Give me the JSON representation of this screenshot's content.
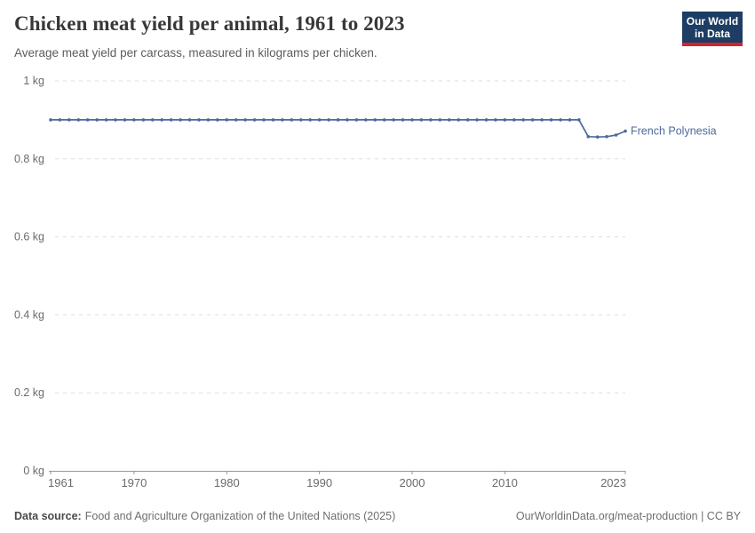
{
  "header": {
    "title": "Chicken meat yield per animal, 1961 to 2023",
    "subtitle": "Average meat yield per carcass, measured in kilograms per chicken.",
    "logo": {
      "line1": "Our World",
      "line2": "in Data",
      "bg_color": "#1d3d63",
      "accent_color": "#d1232a"
    }
  },
  "chart_data": {
    "type": "line",
    "title": "Chicken meat yield per animal, 1961 to 2023",
    "entity": "French Polynesia",
    "unit": "kg",
    "xlabel": "",
    "ylabel": "",
    "xlim": [
      1961,
      2023
    ],
    "ylim": [
      0,
      1
    ],
    "x_ticks": [
      1961,
      1970,
      1980,
      1990,
      2000,
      2010,
      2023
    ],
    "y_ticks": [
      {
        "value": 0,
        "label": "0 kg"
      },
      {
        "value": 0.2,
        "label": "0.2 kg"
      },
      {
        "value": 0.4,
        "label": "0.4 kg"
      },
      {
        "value": 0.6,
        "label": "0.6 kg"
      },
      {
        "value": 0.8,
        "label": "0.8 kg"
      },
      {
        "value": 1,
        "label": "1 kg"
      }
    ],
    "grid": "horizontal-dashed",
    "legend_position": "end-of-line-label",
    "series": [
      {
        "name": "French Polynesia",
        "color": "#4c6a9c",
        "x": [
          1961,
          1962,
          1963,
          1964,
          1965,
          1966,
          1967,
          1968,
          1969,
          1970,
          1971,
          1972,
          1973,
          1974,
          1975,
          1976,
          1977,
          1978,
          1979,
          1980,
          1981,
          1982,
          1983,
          1984,
          1985,
          1986,
          1987,
          1988,
          1989,
          1990,
          1991,
          1992,
          1993,
          1994,
          1995,
          1996,
          1997,
          1998,
          1999,
          2000,
          2001,
          2002,
          2003,
          2004,
          2005,
          2006,
          2007,
          2008,
          2009,
          2010,
          2011,
          2012,
          2013,
          2014,
          2015,
          2016,
          2017,
          2018,
          2019,
          2020,
          2021,
          2022,
          2023
        ],
        "values": [
          0.9,
          0.9,
          0.9,
          0.9,
          0.9,
          0.9,
          0.9,
          0.9,
          0.9,
          0.9,
          0.9,
          0.9,
          0.9,
          0.9,
          0.9,
          0.9,
          0.9,
          0.9,
          0.9,
          0.9,
          0.9,
          0.9,
          0.9,
          0.9,
          0.9,
          0.9,
          0.9,
          0.9,
          0.9,
          0.9,
          0.9,
          0.9,
          0.9,
          0.9,
          0.9,
          0.9,
          0.9,
          0.9,
          0.9,
          0.9,
          0.9,
          0.9,
          0.9,
          0.9,
          0.9,
          0.9,
          0.9,
          0.9,
          0.9,
          0.9,
          0.9,
          0.9,
          0.9,
          0.9,
          0.9,
          0.9,
          0.9,
          0.9,
          0.857,
          0.856,
          0.857,
          0.861,
          0.871
        ]
      }
    ]
  },
  "footer": {
    "source_label": "Data source:",
    "source_text": "Food and Agriculture Organization of the United Nations (2025)",
    "attribution": "OurWorldinData.org/meat-production | CC BY"
  },
  "colors": {
    "tick_text": "#6b6b6b",
    "gridline": "#dddddd",
    "axis": "#969696",
    "series": "#4c6a9c"
  }
}
